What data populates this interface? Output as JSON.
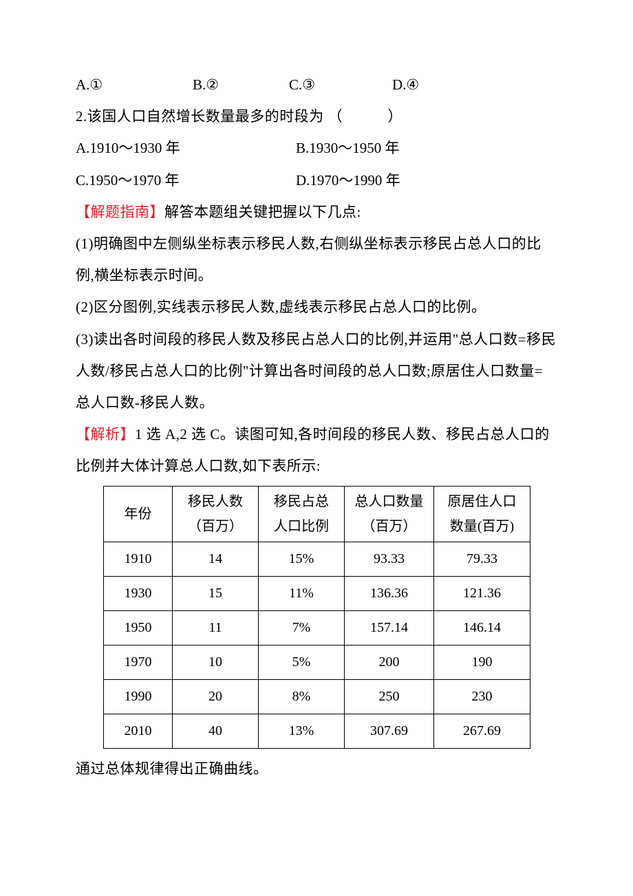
{
  "options_q1": {
    "a": "A.①",
    "b": "B.②",
    "c": "C.③",
    "d": "D.④"
  },
  "q2": {
    "stem": "2.该国人口自然增长数量最多的时段为",
    "paren": "（　　）",
    "a": "A.1910～1930 年",
    "b": "B.1930～1950 年",
    "c": "C.1950～1970 年",
    "d": "D.1970～1990 年"
  },
  "guide": {
    "label": "【解题指南】",
    "intro": "解答本题组关键把握以下几点:",
    "p1": "(1)明确图中左侧纵坐标表示移民人数,右侧纵坐标表示移民占总人口的比例,横坐标表示时间。",
    "p2": "(2)区分图例,实线表示移民人数,虚线表示移民占总人口的比例。",
    "p3a": "(3)读出各时间段的移民人数及移民占总人口的比例,并运用\"总人口数=移民人数/移民占总人口的比例\"计算出各时间段的总人口数;原居住人口数量=总人口数-移民人数。"
  },
  "analysis": {
    "label": "【解析】",
    "text": "1 选 A,2 选 C。读图可知,各时间段的移民人数、移民占总人口的比例并大体计算总人口数,如下表所示:"
  },
  "table": {
    "headers": {
      "year": "年份",
      "mig1": "移民人数",
      "mig2": "（百万）",
      "pct1": "移民占总",
      "pct2": "人口比例",
      "total1": "总人口数量",
      "total2": "（百万）",
      "orig1": "原居住人口",
      "orig2": "数量(百万)"
    },
    "rows": [
      {
        "year": "1910",
        "mig": "14",
        "pct": "15%",
        "total": "93.33",
        "orig": "79.33"
      },
      {
        "year": "1930",
        "mig": "15",
        "pct": "11%",
        "total": "136.36",
        "orig": "121.36"
      },
      {
        "year": "1950",
        "mig": "11",
        "pct": "7%",
        "total": "157.14",
        "orig": "146.14"
      },
      {
        "year": "1970",
        "mig": "10",
        "pct": "5%",
        "total": "200",
        "orig": "190"
      },
      {
        "year": "1990",
        "mig": "20",
        "pct": "8%",
        "total": "250",
        "orig": "230"
      },
      {
        "year": "2010",
        "mig": "40",
        "pct": "13%",
        "total": "307.69",
        "orig": "267.69"
      }
    ]
  },
  "closing": "通过总体规律得出正确曲线。",
  "colors": {
    "text": "#000000",
    "accent": "#ed1c24",
    "border": "#000000",
    "background": "#ffffff"
  }
}
